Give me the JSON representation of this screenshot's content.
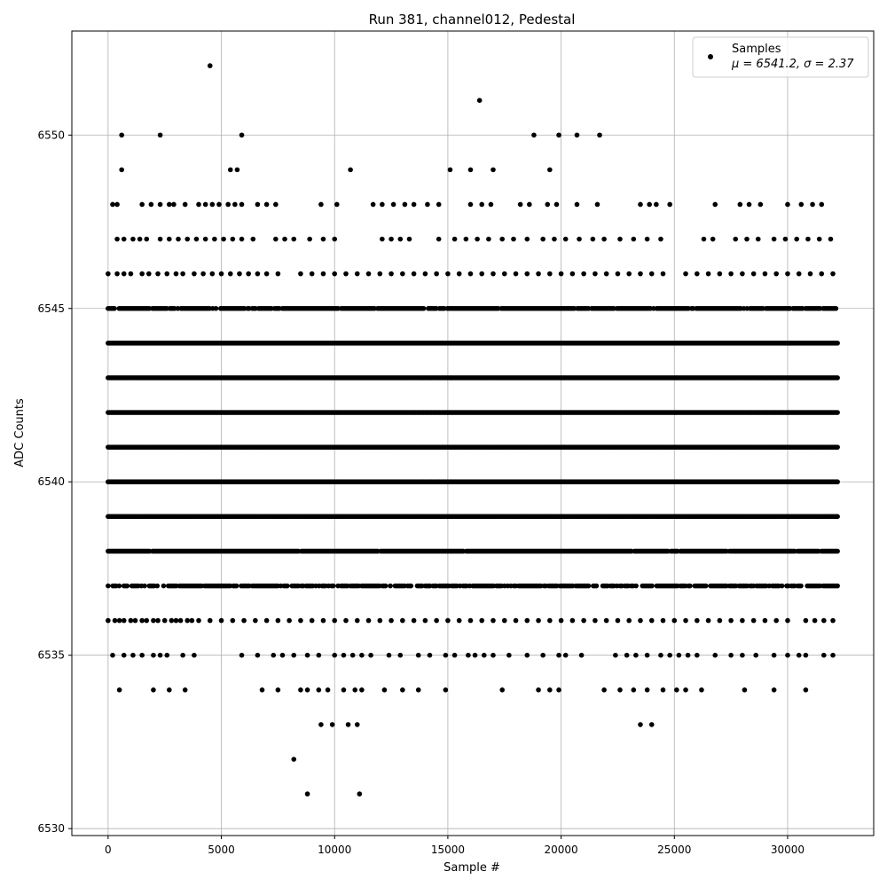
{
  "chart_data": {
    "type": "scatter",
    "title": "Run 381, channel012, Pedestal",
    "xlabel": "Sample #",
    "ylabel": "ADC Counts",
    "xlim": [
      -1600,
      33800
    ],
    "ylim": [
      6529.8,
      6553.0
    ],
    "x_ticks": [
      0,
      5000,
      10000,
      15000,
      20000,
      25000,
      30000
    ],
    "y_ticks": [
      6530,
      6535,
      6540,
      6545,
      6550
    ],
    "grid": true,
    "legend": {
      "placement": "top-right",
      "entries": [
        {
          "label": "Samples",
          "sublabel": "μ = 6541.2, σ = 2.37",
          "marker": "circle",
          "color": "#000000"
        }
      ]
    },
    "marker_color": "#000000",
    "x_range": [
      0,
      32200
    ],
    "dense_levels": [
      {
        "y": 6537,
        "density": 0.75
      },
      {
        "y": 6538,
        "density": 0.97
      },
      {
        "y": 6539,
        "density": 1.0
      },
      {
        "y": 6540,
        "density": 1.0
      },
      {
        "y": 6541,
        "density": 1.0
      },
      {
        "y": 6542,
        "density": 1.0
      },
      {
        "y": 6543,
        "density": 1.0
      },
      {
        "y": 6544,
        "density": 1.0
      },
      {
        "y": 6545,
        "density": 0.92
      }
    ],
    "sparse_levels": {
      "6536": [
        0,
        300,
        500,
        700,
        1000,
        1200,
        1500,
        1700,
        2000,
        2200,
        2500,
        2800,
        3000,
        3200,
        3500,
        3700,
        4000,
        4500,
        5000,
        5500,
        6000,
        6500,
        7000,
        7500,
        8000,
        8500,
        9000,
        9500,
        10000,
        10500,
        11000,
        11500,
        12000,
        12500,
        13000,
        13500,
        14000,
        14500,
        15000,
        15500,
        16000,
        16500,
        17000,
        17500,
        18000,
        18500,
        19000,
        19500,
        20000,
        20500,
        21000,
        21500,
        22000,
        22500,
        23000,
        23500,
        24000,
        24500,
        25000,
        25500,
        26000,
        26500,
        27000,
        27500,
        28000,
        28500,
        29000,
        29500,
        30000,
        30800,
        31200,
        31600,
        32000
      ],
      "6546": [
        0,
        400,
        700,
        1000,
        1500,
        1800,
        2200,
        2600,
        3000,
        3300,
        3800,
        4200,
        4600,
        5000,
        5400,
        5800,
        6200,
        6600,
        7000,
        7500,
        8500,
        9000,
        9500,
        10000,
        10500,
        11000,
        11500,
        12000,
        12500,
        13000,
        13500,
        14000,
        14500,
        15000,
        15500,
        16000,
        16500,
        17000,
        17500,
        18000,
        18500,
        19000,
        19500,
        20000,
        20500,
        21000,
        21500,
        22000,
        22500,
        23000,
        23500,
        24000,
        24500,
        25500,
        26000,
        26500,
        27000,
        27500,
        28000,
        28500,
        29000,
        29500,
        30000,
        30500,
        31000,
        31500,
        32000
      ],
      "6547": [
        400,
        700,
        1100,
        1400,
        1700,
        2300,
        2700,
        3100,
        3500,
        3900,
        4300,
        4700,
        5100,
        5500,
        5900,
        6400,
        7400,
        7800,
        8200,
        8900,
        9500,
        10000,
        12100,
        12500,
        12900,
        13300,
        14600,
        15300,
        15800,
        16300,
        16800,
        17400,
        17900,
        18500,
        19200,
        19700,
        20200,
        20800,
        21400,
        21900,
        22600,
        23200,
        23800,
        24400,
        26300,
        26700,
        27700,
        28200,
        28700,
        29400,
        29900,
        30400,
        30900,
        31400,
        31900
      ],
      "6548": [
        200,
        400,
        1500,
        1900,
        2300,
        2700,
        2900,
        3400,
        4000,
        4300,
        4600,
        4900,
        5300,
        5600,
        5900,
        6600,
        7000,
        7400,
        9400,
        10100,
        11700,
        12100,
        12600,
        13100,
        13500,
        14100,
        14600,
        16000,
        16500,
        16900,
        18200,
        18600,
        19400,
        19800,
        20700,
        21600,
        23500,
        23900,
        24200,
        24800,
        26800,
        27900,
        28300,
        28800,
        30000,
        30600,
        31100,
        31500
      ],
      "6535": [
        200,
        700,
        1100,
        1500,
        2000,
        2300,
        2600,
        3300,
        3800,
        5900,
        6600,
        7300,
        7700,
        8200,
        8800,
        9300,
        10000,
        10400,
        10800,
        11200,
        11600,
        12400,
        12900,
        13700,
        14200,
        14900,
        15300,
        15900,
        16200,
        16600,
        17000,
        17700,
        18500,
        19200,
        19900,
        20200,
        20900,
        22400,
        22900,
        23300,
        23800,
        24400,
        24800,
        25200,
        25600,
        26000,
        26800,
        27500,
        28000,
        28600,
        29400,
        30000,
        30500,
        30800,
        31600,
        32000
      ],
      "6534": [
        500,
        2000,
        2700,
        3400,
        6800,
        7500,
        8500,
        8800,
        9300,
        9700,
        10400,
        10900,
        11200,
        12200,
        13000,
        13700,
        14900,
        17400,
        19000,
        19500,
        19900,
        21900,
        22600,
        23200,
        23800,
        24500,
        25100,
        25500,
        26200,
        28100,
        29400,
        30800
      ],
      "6533": [
        9400,
        9900,
        10600,
        11000,
        23500,
        24000
      ],
      "6532": [
        8200
      ],
      "6531": [
        8800,
        11100
      ],
      "6549": [
        600,
        5400,
        5700,
        10700,
        15100,
        16000,
        17000,
        19500
      ],
      "6550": [
        600,
        2300,
        5900,
        18800,
        19900,
        20700,
        21700
      ],
      "6551": [
        16400
      ],
      "6552": [
        4500
      ]
    }
  }
}
